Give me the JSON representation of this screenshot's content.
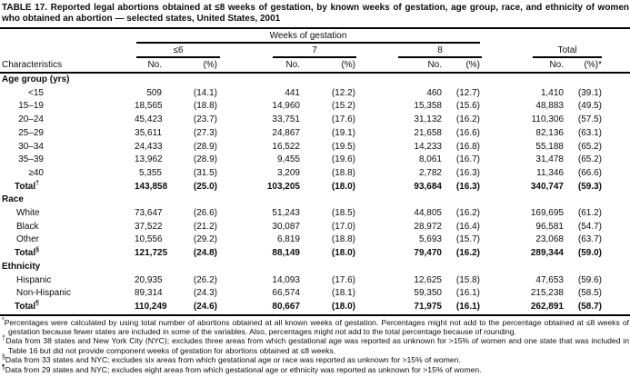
{
  "title": "TABLE 17. Reported legal abortions obtained at ≤8 weeks of gestation, by known weeks of gestation, age group, race, and ethnicity of women who obtained an abortion — selected states, United States, 2001",
  "header": {
    "characteristics_label": "Characteristics",
    "group_title": "Weeks of gestation",
    "col_groups": [
      {
        "label": "≤6"
      },
      {
        "label": "7"
      },
      {
        "label": "8"
      },
      {
        "label": "Total"
      }
    ],
    "no_label": "No.",
    "pct_label": "(%)",
    "pct_star_label": "(%)*"
  },
  "sections": [
    {
      "name": "Age group (yrs)",
      "label_align": "right",
      "rows": [
        {
          "label": "<15",
          "cells": [
            "509",
            "(14.1)",
            "441",
            "(12.2)",
            "460",
            "(12.7)",
            "1,410",
            "(39.1)"
          ]
        },
        {
          "label": "15–19",
          "cells": [
            "18,565",
            "(18.8)",
            "14,960",
            "(15.2)",
            "15,358",
            "(15.6)",
            "48,883",
            "(49.5)"
          ]
        },
        {
          "label": "20–24",
          "cells": [
            "45,423",
            "(23.7)",
            "33,751",
            "(17.6)",
            "31,132",
            "(16.2)",
            "110,306",
            "(57.5)"
          ]
        },
        {
          "label": "25–29",
          "cells": [
            "35,611",
            "(27.3)",
            "24,867",
            "(19.1)",
            "21,658",
            "(16.6)",
            "82,136",
            "(63.1)"
          ]
        },
        {
          "label": "30–34",
          "cells": [
            "24,433",
            "(28.9)",
            "16,522",
            "(19.5)",
            "14,233",
            "(16.8)",
            "55,188",
            "(65.2)"
          ]
        },
        {
          "label": "35–39",
          "cells": [
            "13,962",
            "(28.9)",
            "9,455",
            "(19.6)",
            "8,061",
            "(16.7)",
            "31,478",
            "(65.2)"
          ]
        },
        {
          "label": "≥40",
          "cells": [
            "5,355",
            "(31.5)",
            "3,209",
            "(18.8)",
            "2,782",
            "(16.3)",
            "11,346",
            "(66.6)"
          ]
        },
        {
          "label": "Total",
          "marker": "†",
          "total": true,
          "cells": [
            "143,858",
            "(25.0)",
            "103,205",
            "(18.0)",
            "93,684",
            "(16.3)",
            "340,747",
            "(59.3)"
          ]
        }
      ]
    },
    {
      "name": "Race",
      "label_align": "left",
      "rows": [
        {
          "label": "White",
          "cells": [
            "73,647",
            "(26.6)",
            "51,243",
            "(18.5)",
            "44,805",
            "(16.2)",
            "169,695",
            "(61.2)"
          ]
        },
        {
          "label": "Black",
          "cells": [
            "37,522",
            "(21.2)",
            "30,087",
            "(17.0)",
            "28,972",
            "(16.4)",
            "96,581",
            "(54.7)"
          ]
        },
        {
          "label": "Other",
          "cells": [
            "10,556",
            "(29.2)",
            "6,819",
            "(18.8)",
            "5,693",
            "(15.7)",
            "23,068",
            "(63.7)"
          ]
        },
        {
          "label": "Total",
          "marker": "§",
          "total": true,
          "cells": [
            "121,725",
            "(24.8)",
            "88,149",
            "(18.0)",
            "79,470",
            "(16.2)",
            "289,344",
            "(59.0)"
          ]
        }
      ]
    },
    {
      "name": "Ethnicity",
      "label_align": "left",
      "rows": [
        {
          "label": "Hispanic",
          "cells": [
            "20,935",
            "(26.2)",
            "14,093",
            "(17.6)",
            "12,625",
            "(15.8)",
            "47,653",
            "(59.6)"
          ]
        },
        {
          "label": "Non-Hispanic",
          "cells": [
            "89,314",
            "(24.3)",
            "66,574",
            "(18.1)",
            "59,350",
            "(16.1)",
            "215,238",
            "(58.5)"
          ]
        },
        {
          "label": "Total",
          "marker": "¶",
          "total": true,
          "cells": [
            "110,249",
            "(24.6)",
            "80,667",
            "(18.0)",
            "71,975",
            "(16.1)",
            "262,891",
            "(58.7)"
          ]
        }
      ]
    }
  ],
  "footnotes": [
    {
      "marker": "*",
      "text": "Percentages were calculated by using total number of abortions obtained at all known weeks of gestation. Percentages might not add to the percentage obtained at ≤8 weeks of gestation because fewer states are included in some of the variables. Also, percentages might not add to the total percentage because of rounding."
    },
    {
      "marker": "†",
      "text": "Data from 38 states and New York City (NYC); excludes three areas from which gestational age was reported as unknown for >15% of women and one state that was included in Table 16 but did not provide component weeks of gestation for abortions obtained at ≤8 weeks."
    },
    {
      "marker": "§",
      "text": "Data from 33 states and NYC; excludes six areas from which gestational age or race was reported as unknown for >15% of women."
    },
    {
      "marker": "¶",
      "text": "Data from 29 states and NYC; excludes eight areas from which gestational age or ethnicity was reported as unknown for >15% of women."
    }
  ]
}
